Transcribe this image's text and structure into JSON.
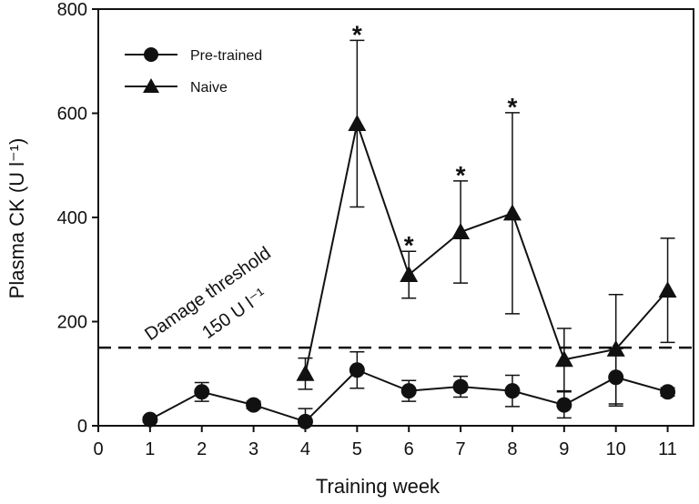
{
  "chart_data": {
    "type": "line",
    "xlabel": "Training week",
    "ylabel": "Plasma CK (U l⁻¹)",
    "xlim": [
      0,
      11.5
    ],
    "ylim": [
      0,
      800
    ],
    "xticks": [
      0,
      1,
      2,
      3,
      4,
      5,
      6,
      7,
      8,
      9,
      10,
      11
    ],
    "yticks": [
      0,
      200,
      400,
      600,
      800
    ],
    "grid": false,
    "legend": {
      "position": "top-left"
    },
    "series": [
      {
        "name": "Pre-trained",
        "marker": "circle",
        "x": [
          1,
          2,
          3,
          4,
          5,
          6,
          7,
          8,
          9,
          10,
          11
        ],
        "y": [
          12,
          65,
          40,
          8,
          107,
          67,
          75,
          67,
          40,
          93,
          65
        ],
        "err": [
          5,
          18,
          7,
          25,
          35,
          20,
          20,
          30,
          25,
          55,
          8
        ]
      },
      {
        "name": "Naive",
        "marker": "triangle",
        "x": [
          4,
          5,
          6,
          7,
          8,
          9,
          10,
          11
        ],
        "y": [
          100,
          580,
          290,
          372,
          408,
          127,
          147,
          260
        ],
        "err": [
          30,
          160,
          45,
          98,
          193,
          60,
          105,
          100
        ]
      }
    ],
    "threshold": {
      "value": 150,
      "label_line1": "Damage threshold",
      "label_line2": "150 U l⁻¹"
    },
    "significance": {
      "symbol": "*",
      "x": [
        5,
        6,
        7,
        8
      ]
    }
  }
}
